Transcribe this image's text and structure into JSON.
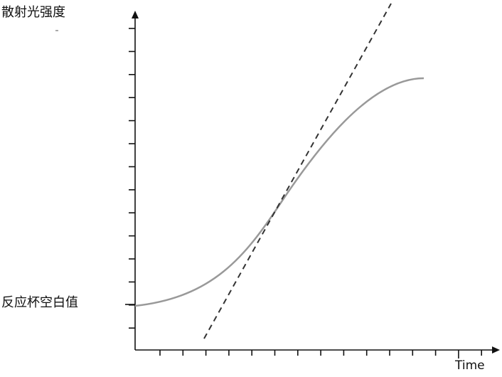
{
  "labels": {
    "y_axis": "散射光强度",
    "baseline": "反应杯空白值",
    "x_axis": "Time"
  }
}
